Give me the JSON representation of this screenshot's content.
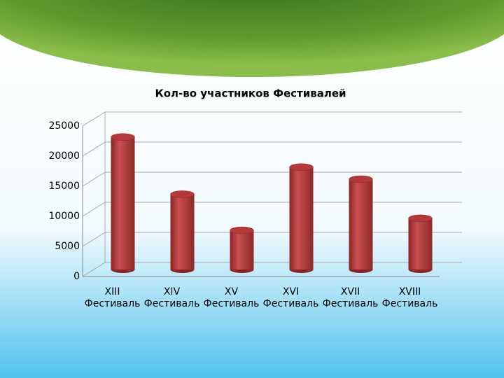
{
  "chart_data": {
    "type": "bar",
    "title": "Кол-во участников Фестивалей",
    "categories": [
      "XIII Фестиваль",
      "XIV Фестиваль",
      "XV Фестиваль",
      "XVI Фестиваль",
      "XVII Фестиваль",
      "XVIII Фестиваль"
    ],
    "values": [
      22000,
      12500,
      6500,
      17000,
      15000,
      8500
    ],
    "color": "#b5393a",
    "ylim": [
      0,
      25000
    ],
    "yticks": [
      0,
      5000,
      10000,
      15000,
      20000,
      25000
    ],
    "grid": true
  }
}
